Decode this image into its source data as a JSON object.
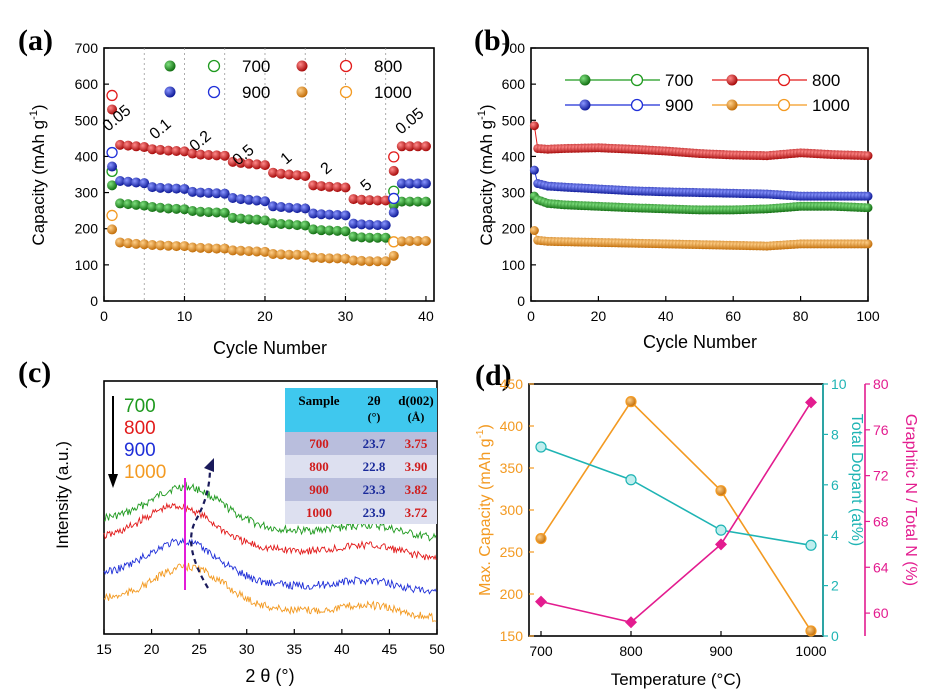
{
  "colors": {
    "c700": "#1f9a1f",
    "c800": "#e21b1b",
    "c900": "#1f2fd8",
    "c1000": "#f39a22",
    "teal": "#1fb4b4",
    "magenta": "#e31c8f",
    "table_head": "#3fc8ee",
    "table_row_dark": "#b9bedd",
    "table_row_light": "#dde0f0",
    "table_val_blue": "#1a2a9a",
    "table_val_red": "#d01c1c"
  },
  "panel_a": {
    "label": "(a)",
    "xlabel": "Cycle Number",
    "ylabel_main": "Capacity (mAh g",
    "ylabel_sup": "-1",
    "ylabel_close": ")",
    "xticks": [
      "0",
      "10",
      "20",
      "30",
      "40"
    ],
    "yticks": [
      "0",
      "100",
      "200",
      "300",
      "400",
      "500",
      "600",
      "700"
    ],
    "rates": [
      "0.05",
      "0.1",
      "0.2",
      "0.5",
      "1",
      "2",
      "5",
      "0.05"
    ],
    "legend": [
      "700",
      "800",
      "900",
      "1000"
    ]
  },
  "panel_b": {
    "label": "(b)",
    "xlabel": "Cycle Number",
    "ylabel_main": "Capacity (mAh g",
    "ylabel_sup": "-1",
    "ylabel_close": ")",
    "xticks": [
      "0",
      "20",
      "40",
      "60",
      "80",
      "100"
    ],
    "yticks": [
      "0",
      "100",
      "200",
      "300",
      "400",
      "500",
      "600",
      "700"
    ],
    "legend": [
      "700",
      "800",
      "900",
      "1000"
    ]
  },
  "panel_c": {
    "label": "(c)",
    "xlabel": "2 θ (°)",
    "ylabel": "Intensity (a.u.)",
    "xticks": [
      "15",
      "20",
      "25",
      "30",
      "35",
      "40",
      "45",
      "50"
    ],
    "legend": [
      "700",
      "800",
      "900",
      "1000"
    ],
    "table": {
      "headers": [
        "Sample",
        "2θ",
        "d(002)"
      ],
      "header_units": [
        "",
        "(°)",
        "(Å)"
      ],
      "rows": [
        [
          "700",
          "23.7",
          "3.75"
        ],
        [
          "800",
          "22.8",
          "3.90"
        ],
        [
          "900",
          "23.3",
          "3.82"
        ],
        [
          "1000",
          "23.9",
          "3.72"
        ]
      ]
    }
  },
  "panel_d": {
    "label": "(d)",
    "xlabel": "Temperature (°C)",
    "ylabel_left": "Max. Capacity (mAh g",
    "ylabel_left_sup": "-1",
    "ylabel_left_close": ")",
    "ylabel_mid": "Total Dopant (at%)",
    "ylabel_right": "Graphitic N / Total N (%)",
    "xticks": [
      "700",
      "800",
      "900",
      "1000"
    ],
    "yticks_left": [
      "150",
      "200",
      "250",
      "300",
      "350",
      "400",
      "450"
    ],
    "yticks_mid": [
      "0",
      "2",
      "4",
      "6",
      "8",
      "10"
    ],
    "yticks_right": [
      "60",
      "64",
      "68",
      "72",
      "76",
      "80"
    ]
  },
  "chart_data": [
    {
      "type": "scatter",
      "title": "",
      "xlabel": "Cycle Number",
      "ylabel": "Capacity (mAh g-1)",
      "xlim": [
        0,
        41
      ],
      "ylim": [
        0,
        700
      ],
      "rate_labels": [
        "0.05",
        "0.1",
        "0.2",
        "0.5",
        "1",
        "2",
        "5",
        "0.05"
      ],
      "rate_boundaries": [
        5,
        10,
        15,
        20,
        25,
        30,
        35
      ],
      "series": [
        {
          "name": "700",
          "x": [
            1,
            2,
            3,
            4,
            5,
            6,
            7,
            8,
            9,
            10,
            11,
            12,
            13,
            14,
            15,
            16,
            17,
            18,
            19,
            20,
            21,
            22,
            23,
            24,
            25,
            26,
            27,
            28,
            29,
            30,
            31,
            32,
            33,
            34,
            35,
            36,
            37,
            38,
            39,
            40
          ],
          "values": [
            320,
            270,
            268,
            266,
            264,
            260,
            258,
            256,
            255,
            254,
            249,
            247,
            246,
            245,
            244,
            230,
            228,
            226,
            225,
            223,
            215,
            213,
            212,
            210,
            209,
            198,
            196,
            195,
            194,
            193,
            178,
            176,
            175,
            175,
            175,
            265,
            275,
            275,
            275,
            275
          ]
        },
        {
          "name": "800",
          "x": [
            1,
            2,
            3,
            4,
            5,
            6,
            7,
            8,
            9,
            10,
            11,
            12,
            13,
            14,
            15,
            16,
            17,
            18,
            19,
            20,
            21,
            22,
            23,
            24,
            25,
            26,
            27,
            28,
            29,
            30,
            31,
            32,
            33,
            34,
            35,
            36,
            37,
            38,
            39,
            40
          ],
          "values": [
            530,
            432,
            430,
            428,
            426,
            420,
            418,
            416,
            415,
            414,
            408,
            405,
            404,
            403,
            402,
            385,
            382,
            380,
            378,
            376,
            355,
            352,
            350,
            348,
            346,
            320,
            318,
            316,
            315,
            314,
            282,
            280,
            279,
            278,
            278,
            360,
            428,
            428,
            428,
            428
          ]
        },
        {
          "name": "900",
          "x": [
            1,
            2,
            3,
            4,
            5,
            6,
            7,
            8,
            9,
            10,
            11,
            12,
            13,
            14,
            15,
            16,
            17,
            18,
            19,
            20,
            21,
            22,
            23,
            24,
            25,
            26,
            27,
            28,
            29,
            30,
            31,
            32,
            33,
            34,
            35,
            36,
            37,
            38,
            39,
            40
          ],
          "values": [
            372,
            332,
            330,
            328,
            326,
            315,
            313,
            312,
            311,
            310,
            302,
            300,
            299,
            298,
            297,
            285,
            282,
            280,
            278,
            276,
            262,
            260,
            258,
            257,
            256,
            242,
            240,
            239,
            238,
            237,
            214,
            212,
            211,
            210,
            210,
            245,
            325,
            325,
            325,
            325
          ]
        },
        {
          "name": "1000",
          "x": [
            1,
            2,
            3,
            4,
            5,
            6,
            7,
            8,
            9,
            10,
            11,
            12,
            13,
            14,
            15,
            16,
            17,
            18,
            19,
            20,
            21,
            22,
            23,
            24,
            25,
            26,
            27,
            28,
            29,
            30,
            31,
            32,
            33,
            34,
            35,
            36,
            37,
            38,
            39,
            40
          ],
          "values": [
            198,
            162,
            160,
            158,
            157,
            155,
            154,
            153,
            152,
            152,
            148,
            147,
            146,
            145,
            145,
            140,
            139,
            138,
            137,
            136,
            130,
            129,
            128,
            128,
            127,
            120,
            119,
            118,
            118,
            117,
            112,
            111,
            110,
            110,
            110,
            125,
            165,
            166,
            166,
            166
          ]
        }
      ]
    },
    {
      "type": "line",
      "title": "",
      "xlabel": "Cycle Number",
      "ylabel": "Capacity (mAh g-1)",
      "xlim": [
        0,
        100
      ],
      "ylim": [
        0,
        700
      ],
      "series": [
        {
          "name": "700",
          "x": [
            1,
            2,
            5,
            10,
            20,
            30,
            40,
            50,
            60,
            70,
            80,
            90,
            100
          ],
          "values": [
            290,
            280,
            270,
            266,
            262,
            258,
            255,
            252,
            252,
            255,
            262,
            262,
            258
          ]
        },
        {
          "name": "800",
          "x": [
            1,
            2,
            5,
            10,
            20,
            30,
            40,
            50,
            60,
            70,
            80,
            90,
            100
          ],
          "values": [
            485,
            422,
            420,
            422,
            424,
            420,
            415,
            408,
            404,
            402,
            410,
            405,
            402
          ]
        },
        {
          "name": "900",
          "x": [
            1,
            2,
            5,
            10,
            20,
            30,
            40,
            50,
            60,
            70,
            80,
            90,
            100
          ],
          "values": [
            362,
            325,
            318,
            315,
            310,
            305,
            302,
            300,
            298,
            296,
            290,
            290,
            290
          ]
        },
        {
          "name": "1000",
          "x": [
            1,
            2,
            5,
            10,
            20,
            30,
            40,
            50,
            60,
            70,
            80,
            90,
            100
          ],
          "values": [
            195,
            168,
            165,
            164,
            162,
            160,
            158,
            156,
            154,
            152,
            158,
            158,
            158
          ]
        }
      ]
    },
    {
      "type": "line",
      "title": "",
      "xlabel": "2 θ (°)",
      "ylabel": "Intensity (a.u.)",
      "xlim": [
        15,
        50
      ],
      "series": [
        {
          "name": "700",
          "peak": 23.7
        },
        {
          "name": "800",
          "peak": 22.8
        },
        {
          "name": "900",
          "peak": 23.3
        },
        {
          "name": "1000",
          "peak": 23.9
        }
      ]
    },
    {
      "type": "line",
      "title": "",
      "xlabel": "Temperature (°C)",
      "categories": [
        700,
        800,
        900,
        1000
      ],
      "series": [
        {
          "name": "Max. Capacity (mAh g-1)",
          "axis": "left",
          "values": [
            266,
            429,
            323,
            156
          ],
          "ylim": [
            150,
            450
          ]
        },
        {
          "name": "Total Dopant (at%)",
          "axis": "middle",
          "values": [
            7.5,
            6.2,
            4.2,
            3.6
          ],
          "ylim": [
            0,
            10
          ]
        },
        {
          "name": "Graphitic N / Total N (%)",
          "axis": "right",
          "values": [
            61.0,
            59.2,
            66.0,
            78.4
          ],
          "ylim": [
            58,
            80
          ]
        }
      ]
    }
  ]
}
